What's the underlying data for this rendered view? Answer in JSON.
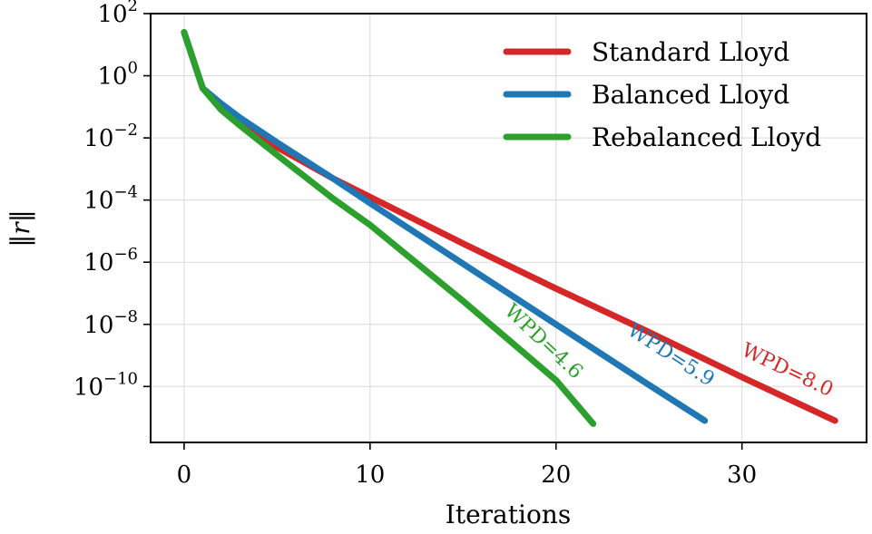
{
  "chart_data": {
    "type": "line",
    "title": "",
    "xlabel": "Iterations",
    "ylabel": "‖r‖",
    "xlim": [
      -1.8,
      36.7
    ],
    "ylim_log10": [
      -11.8,
      2.0
    ],
    "yscale": "log",
    "grid": true,
    "legend_position": "top-right",
    "x_ticks": [
      {
        "value": 0,
        "label": "0"
      },
      {
        "value": 10,
        "label": "10"
      },
      {
        "value": 20,
        "label": "20"
      },
      {
        "value": 30,
        "label": "30"
      }
    ],
    "y_ticks": [
      {
        "exp": 2,
        "base": "10",
        "sup": "2"
      },
      {
        "exp": 0,
        "base": "10",
        "sup": "0"
      },
      {
        "exp": -2,
        "base": "10",
        "sup": "−2"
      },
      {
        "exp": -4,
        "base": "10",
        "sup": "−4"
      },
      {
        "exp": -6,
        "base": "10",
        "sup": "−6"
      },
      {
        "exp": -8,
        "base": "10",
        "sup": "−8"
      },
      {
        "exp": -10,
        "base": "10",
        "sup": "−10"
      }
    ],
    "series": [
      {
        "name": "Standard Lloyd",
        "color": "#d62728",
        "x": [
          0,
          1,
          2,
          3,
          5,
          8,
          10,
          15,
          20,
          25,
          30,
          35
        ],
        "log10_y": [
          1.4,
          -0.4,
          -1.0,
          -1.45,
          -2.3,
          -3.3,
          -3.9,
          -5.4,
          -6.85,
          -8.25,
          -9.7,
          -11.1
        ]
      },
      {
        "name": "Balanced Lloyd",
        "color": "#1f77b4",
        "x": [
          0,
          1,
          2,
          3,
          5,
          8,
          10,
          15,
          20,
          25,
          28
        ],
        "log10_y": [
          1.4,
          -0.4,
          -0.9,
          -1.35,
          -2.15,
          -3.3,
          -4.1,
          -6.05,
          -8.0,
          -9.95,
          -11.1
        ]
      },
      {
        "name": "Rebalanced Lloyd",
        "color": "#2ca02c",
        "x": [
          0,
          1,
          2,
          3,
          5,
          8,
          10,
          15,
          20,
          22
        ],
        "log10_y": [
          1.4,
          -0.4,
          -1.1,
          -1.6,
          -2.55,
          -3.95,
          -4.8,
          -7.25,
          -9.8,
          -11.2
        ]
      }
    ],
    "annotations": [
      {
        "text": "WPD=8.0",
        "color": "#d62728",
        "x": 32.3,
        "log10_y": -9.65
      },
      {
        "text": "WPD=5.9",
        "color": "#1f77b4",
        "x": 26.0,
        "log10_y": -9.15
      },
      {
        "text": "WPD=4.6",
        "color": "#2ca02c",
        "x": 19.1,
        "log10_y": -8.7
      }
    ]
  }
}
